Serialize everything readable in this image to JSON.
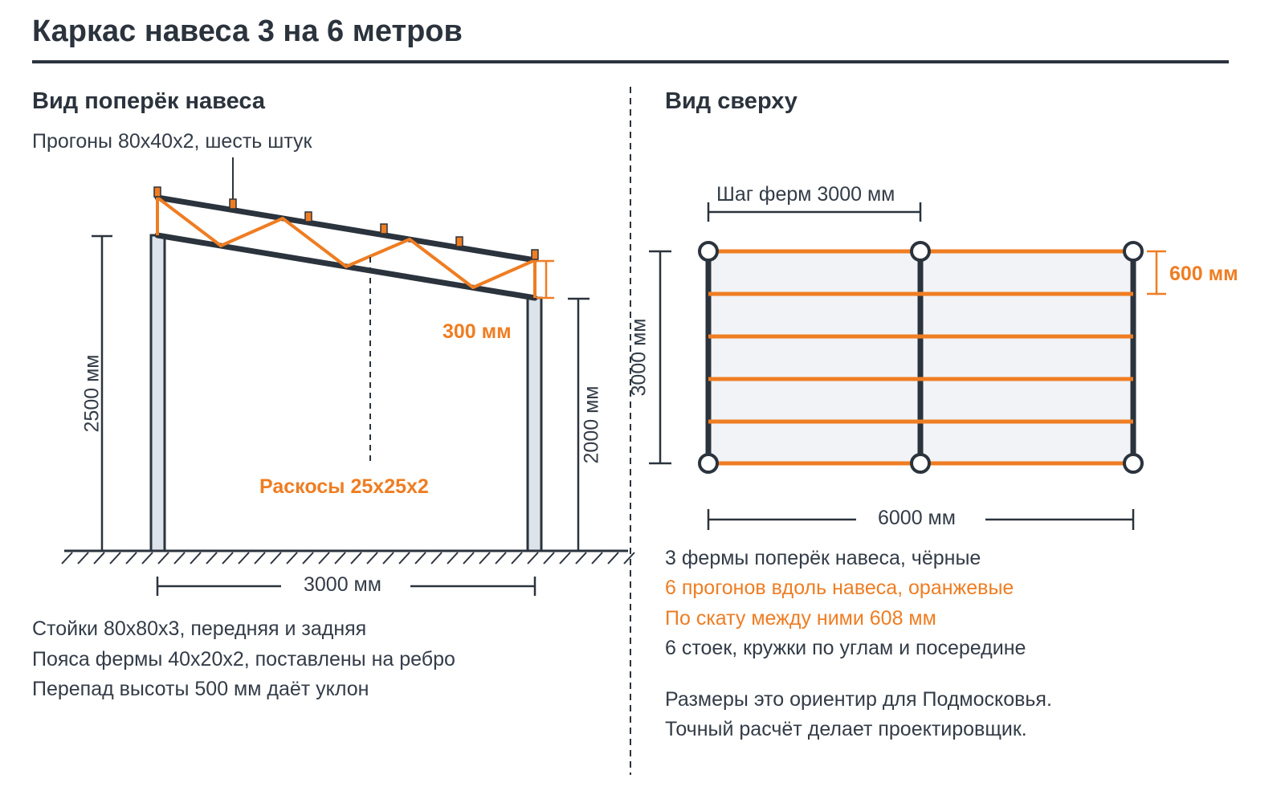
{
  "title": "Каркас навеса 3 на 6 метров",
  "left_panel": {
    "heading": "Вид поперёк навеса",
    "purlins_label": "Прогоны 80x40x2, шесть штук",
    "height_left": "2500 мм",
    "height_right": "2000 мм",
    "truss_depth": "300 мм",
    "braces_label": "Раскосы 25x25x2",
    "span": "3000 мм",
    "notes": [
      "Стойки 80x80x3, передняя и задняя",
      "Пояса фермы 40x20x2, поставлены на ребро",
      "Перепад высоты 500 мм даёт уклон"
    ]
  },
  "right_panel": {
    "heading": "Вид сверху",
    "truss_step": "Шаг ферм 3000 мм",
    "width": "3000 мм",
    "purlin_step": "600 мм",
    "length": "6000 мм",
    "notes": [
      "3 фермы поперёк навеса, чёрные",
      "6 прогонов вдоль навеса, оранжевые",
      "По скату между ними 608 мм",
      "6 стоек, кружки по углам и посередине"
    ],
    "footer": [
      "Размеры это ориентир для Подмосковья.",
      "Точный расчёт делает проектировщик."
    ]
  },
  "colors": {
    "dark": "#2b333d",
    "orange": "#ef7d22",
    "post_fill": "#dde3ea"
  }
}
